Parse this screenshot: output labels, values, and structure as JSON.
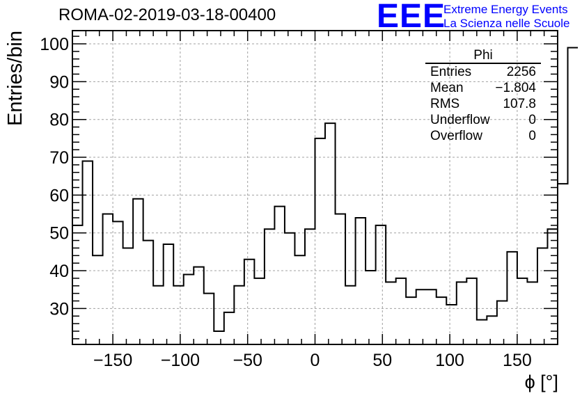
{
  "title": "ROMA-02-2019-03-18-00400",
  "logo": {
    "mark": "EEE",
    "line1": "Extreme Energy Events",
    "line2": "La Scienza nelle Scuole",
    "color": "#0000ff"
  },
  "stats": {
    "title": "Phi",
    "rows": [
      {
        "label": "Entries",
        "value": "2256"
      },
      {
        "label": "Mean",
        "value": "−1.804"
      },
      {
        "label": "RMS",
        "value": "107.8"
      },
      {
        "label": "Underflow",
        "value": "0"
      },
      {
        "label": "Overflow",
        "value": "0"
      }
    ]
  },
  "chart_data": {
    "type": "histogram",
    "title": "ROMA-02-2019-03-18-00400",
    "xlabel": "ϕ [°]",
    "ylabel": "Entries/bin",
    "xlim": [
      -180,
      180
    ],
    "ylim": [
      20.5,
      103.5
    ],
    "bin_width": 7.5,
    "grid": true,
    "xticks": [
      -150,
      -100,
      -50,
      0,
      50,
      100,
      150
    ],
    "xtick_labels": [
      "−150",
      "−100",
      "−50",
      "0",
      "50",
      "100",
      "150"
    ],
    "yticks": [
      30,
      40,
      50,
      60,
      70,
      80,
      90,
      100
    ],
    "ytick_labels": [
      "30",
      "40",
      "50",
      "60",
      "70",
      "80",
      "90",
      "100"
    ],
    "values": [
      52,
      69,
      44,
      55,
      53,
      46,
      59,
      48,
      36,
      47,
      36,
      39,
      41,
      34,
      24,
      29,
      36,
      43,
      38,
      51,
      57,
      50,
      44,
      51,
      75,
      79,
      55,
      36,
      54,
      40,
      52,
      37,
      38,
      33,
      35,
      35,
      33,
      31,
      37,
      38,
      27,
      28,
      32,
      45,
      38,
      37,
      46,
      51,
      63,
      99
    ]
  }
}
